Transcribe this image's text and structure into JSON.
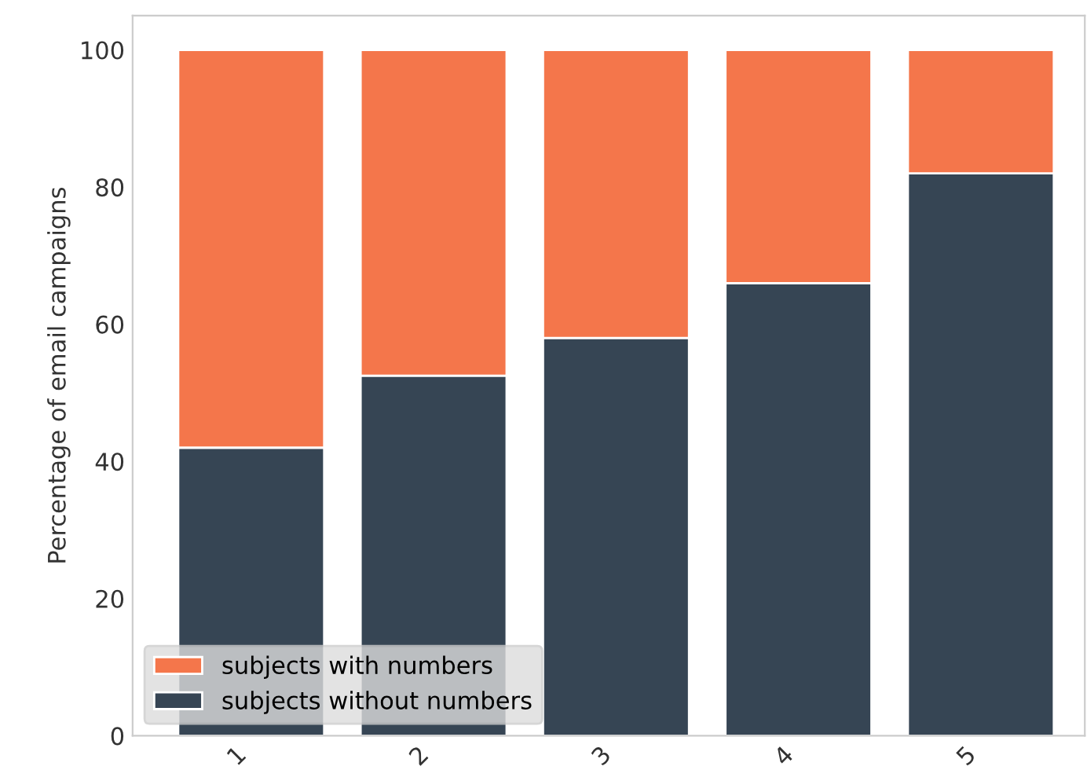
{
  "chart_data": {
    "type": "bar",
    "stacked": true,
    "ylabel": "Percentage of email campaigns",
    "categories": [
      "1",
      "2",
      "3",
      "4",
      "5"
    ],
    "series": [
      {
        "name": "subjects without numbers",
        "color": "#364554",
        "values": [
          42,
          52.5,
          58,
          66,
          82
        ]
      },
      {
        "name": "subjects with numbers",
        "color": "#f4764b",
        "values": [
          58,
          47.5,
          42,
          34,
          18
        ]
      }
    ],
    "ylim": [
      0,
      105
    ],
    "yticks": [
      0,
      20,
      40,
      60,
      80,
      100
    ],
    "grid": false,
    "legend": "bottom left"
  }
}
